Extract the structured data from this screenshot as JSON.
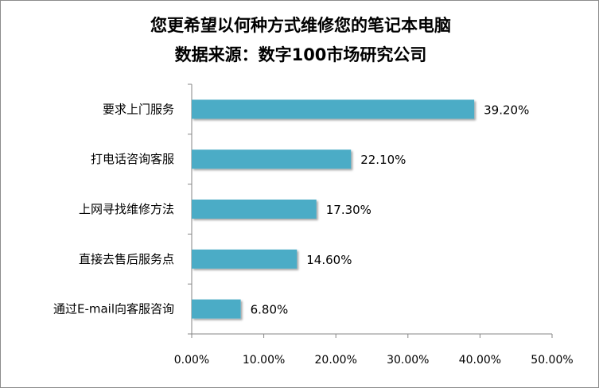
{
  "chart_data": {
    "type": "bar",
    "orientation": "horizontal",
    "title": "您更希望以何种方式维修您的笔记本电脑",
    "subtitle": "数据来源：数字100市场研究公司",
    "categories": [
      "要求上门服务",
      "打电话咨询客服",
      "上网寻找维修方法",
      "直接去售后服务点",
      "通过E-mail向客服咨询"
    ],
    "values": [
      39.2,
      22.1,
      17.3,
      14.6,
      6.8
    ],
    "data_labels": [
      "39.20%",
      "22.10%",
      "17.30%",
      "14.60%",
      "6.80%"
    ],
    "xlim": [
      0,
      50
    ],
    "x_ticks": [
      0,
      10,
      20,
      30,
      40,
      50
    ],
    "x_tick_labels": [
      "0.00%",
      "10.00%",
      "20.00%",
      "30.00%",
      "40.00%",
      "50.00%"
    ],
    "grid": false,
    "legend": "none",
    "bar_color": "#4bacc6"
  }
}
